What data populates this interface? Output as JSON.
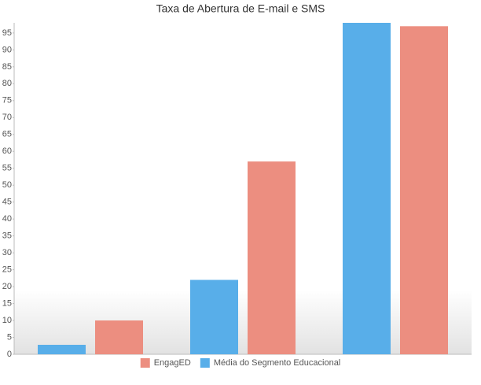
{
  "chart_data": {
    "type": "bar",
    "title": "Taxa de Abertura de E-mail e SMS",
    "categories": [
      null,
      null,
      null
    ],
    "series": [
      {
        "name": "EngagED",
        "color": "#ec8e80",
        "values": [
          10,
          57,
          97
        ]
      },
      {
        "name": "Média do Segmento Educacional",
        "color": "#58aee9",
        "values": [
          2.8,
          22,
          98
        ]
      }
    ],
    "ylim": [
      0,
      98
    ],
    "yticks": [
      0,
      5,
      10,
      15,
      20,
      25,
      30,
      35,
      40,
      45,
      50,
      55,
      60,
      65,
      70,
      75,
      80,
      85,
      90,
      95
    ],
    "grid": false,
    "legend": "bottom"
  }
}
